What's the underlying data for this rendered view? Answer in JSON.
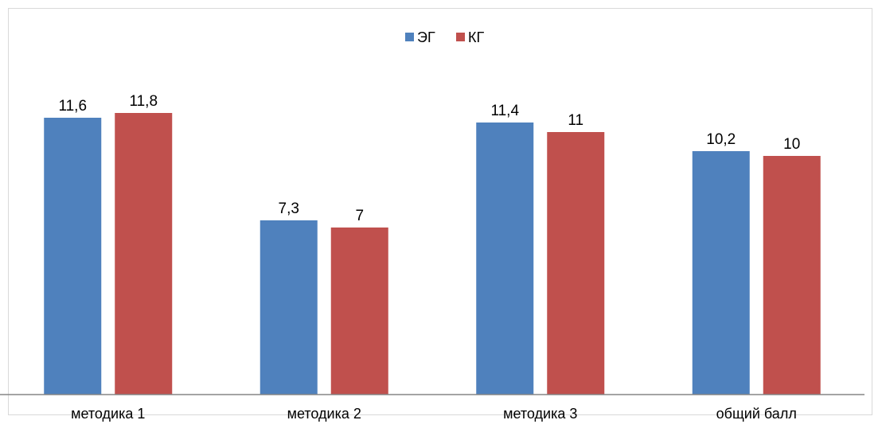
{
  "chart_data": {
    "type": "bar",
    "categories": [
      "методика 1",
      "методика 2",
      "методика 3",
      "общий балл"
    ],
    "series": [
      {
        "name": "ЭГ",
        "values": [
          11.6,
          7.3,
          11.4,
          10.2
        ],
        "labels": [
          "11,6",
          "7,3",
          "11,4",
          "10,2"
        ],
        "color": "#4F81BD"
      },
      {
        "name": "КГ",
        "values": [
          11.8,
          7,
          11,
          10
        ],
        "labels": [
          "11,8",
          "7",
          "11",
          "10"
        ],
        "color": "#C0504D"
      }
    ],
    "title": "",
    "xlabel": "",
    "ylabel": "",
    "ylim": [
      0,
      13.2
    ],
    "grid": false,
    "legend_position": "top-center"
  },
  "colors": {
    "axis": "#868686",
    "frame": "#d9d9d9"
  }
}
